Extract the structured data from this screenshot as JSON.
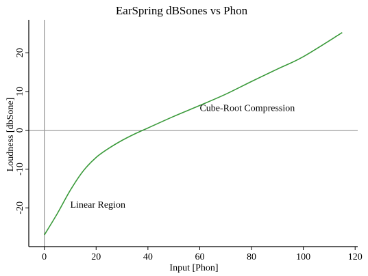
{
  "chart_data": {
    "type": "line",
    "title": "EarSpring dBSones vs Phon",
    "xlabel": "Input [Phon]",
    "ylabel": "Loudness [dbSone]",
    "xlim": [
      -6,
      121
    ],
    "ylim": [
      -30,
      28.5
    ],
    "xticks": [
      0,
      20,
      40,
      60,
      80,
      100,
      120
    ],
    "yticks": [
      -20,
      -10,
      0,
      10,
      20
    ],
    "grid": false,
    "zero_lines": true,
    "series": [
      {
        "color": "#3a9a3a",
        "x": [
          0,
          5,
          10,
          15,
          20,
          25,
          30,
          35,
          40,
          50,
          60,
          70,
          80,
          90,
          100,
          115
        ],
        "y": [
          -27,
          -21.5,
          -15.5,
          -10.5,
          -7,
          -4.6,
          -2.6,
          -0.9,
          0.6,
          3.6,
          6.4,
          9.3,
          12.6,
          15.8,
          19.0,
          25.2
        ]
      }
    ],
    "annotations": [
      {
        "text": "Linear Region",
        "x": 10,
        "y": -20
      },
      {
        "text": "Cube-Root Compression",
        "x": 60,
        "y": 5
      }
    ]
  }
}
